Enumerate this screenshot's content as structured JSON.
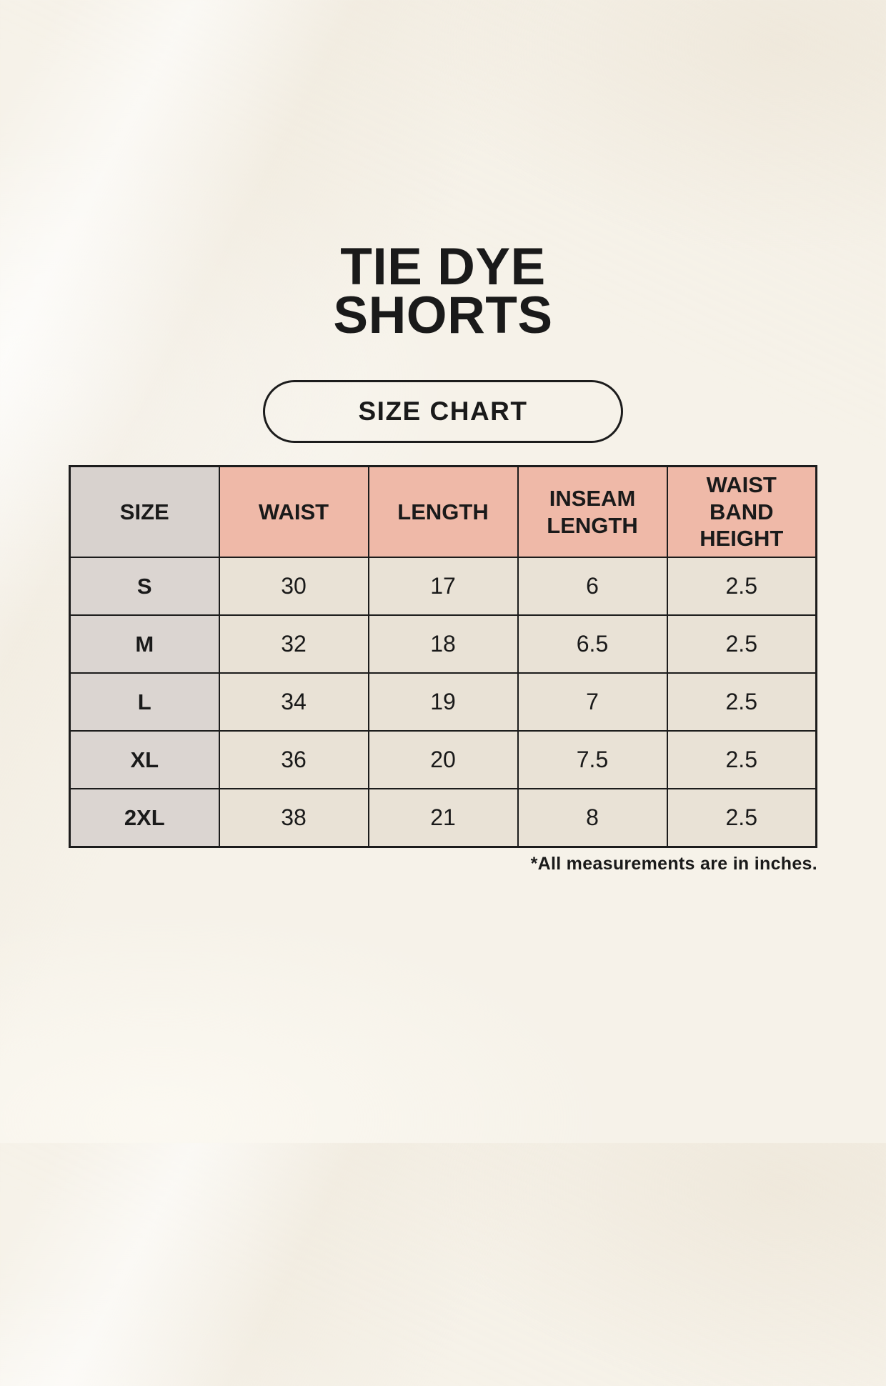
{
  "title": {
    "line1": "TIE DYE",
    "line2": "SHORTS"
  },
  "badge": {
    "label": "SIZE CHART"
  },
  "footer": {
    "note": "*All measurements are in inches."
  },
  "colors": {
    "background": "#f6f2e9",
    "header_pink": "#efb9a8",
    "header_gray": "#d8d2ce",
    "label_gray": "#dbd5d1",
    "cell_beige": "#e9e2d6",
    "border": "#1c1c1c",
    "text": "#1a1a1a"
  },
  "chart_data": {
    "type": "table",
    "title": "TIE DYE SHORTS — SIZE CHART",
    "columns": [
      "SIZE",
      "WAIST",
      "LENGTH",
      "INSEAM LENGTH",
      "WAIST BAND HEIGHT"
    ],
    "rows": [
      [
        "S",
        "30",
        "17",
        "6",
        "2.5"
      ],
      [
        "M",
        "32",
        "18",
        "6.5",
        "2.5"
      ],
      [
        "L",
        "34",
        "19",
        "7",
        "2.5"
      ],
      [
        "XL",
        "36",
        "20",
        "7.5",
        "2.5"
      ],
      [
        "2XL",
        "38",
        "21",
        "8",
        "2.5"
      ]
    ],
    "units_note": "*All measurements are in inches."
  }
}
